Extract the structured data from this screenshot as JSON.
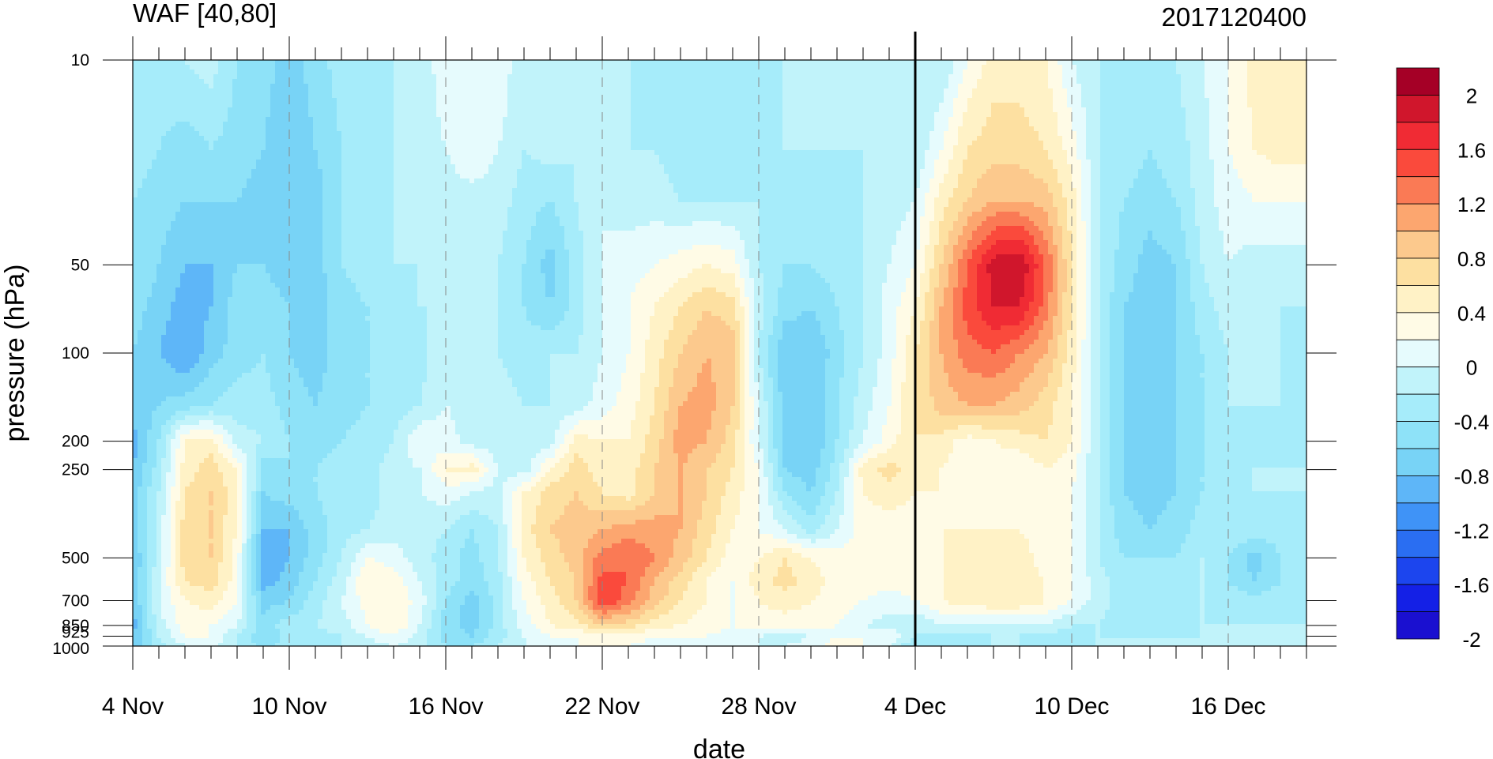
{
  "chart_data": {
    "type": "heatmap",
    "title_left": "WAF [40,80]",
    "title_right": "2017120400",
    "xlabel": "date",
    "ylabel": "pressure (hPa)",
    "x_tick_labels": [
      "4 Nov",
      "10 Nov",
      "16 Nov",
      "22 Nov",
      "28 Nov",
      "4 Dec",
      "10 Dec",
      "16 Dec"
    ],
    "x_range": [
      "4 Nov",
      "19 Dec"
    ],
    "y_tick_labels": [
      "10",
      "50",
      "100",
      "200",
      "250",
      "500",
      "700",
      "850",
      "925",
      "1000"
    ],
    "y_scale": "log",
    "y_range_hPa": [
      1000,
      10
    ],
    "marked_date": "4 Dec",
    "colorbar_labels": [
      "2",
      "1.6",
      "1.2",
      "0.8",
      "0.4",
      "0",
      "-0.4",
      "-0.8",
      "-1.2",
      "-1.6",
      "-2"
    ],
    "colorbar_colors": [
      "#a50026",
      "#d0162c",
      "#f02b34",
      "#fa4a3c",
      "#fa7a55",
      "#fca66f",
      "#fcc98d",
      "#fde0a1",
      "#fff2c6",
      "#fffbe6",
      "#e6fbfd",
      "#c1f3fa",
      "#a6ecfa",
      "#8ee2f8",
      "#78d3f6",
      "#5eb6f8",
      "#3f93f7",
      "#2a6ef2",
      "#1c45ee",
      "#1420e6",
      "#1a10d0"
    ],
    "grid": "dashed vertical lines at labeled dates",
    "legend_placement": "right",
    "field_by_day": {
      "days": [
        "4 Nov",
        "5 Nov",
        "6 Nov",
        "7 Nov",
        "8 Nov",
        "9 Nov",
        "10 Nov",
        "11 Nov",
        "12 Nov",
        "13 Nov",
        "14 Nov",
        "15 Nov",
        "16 Nov",
        "17 Nov",
        "18 Nov",
        "19 Nov",
        "20 Nov",
        "21 Nov",
        "22 Nov",
        "23 Nov",
        "24 Nov",
        "25 Nov",
        "26 Nov",
        "27 Nov",
        "28 Nov",
        "29 Nov",
        "30 Nov",
        "1 Dec",
        "2 Dec",
        "3 Dec",
        "4 Dec",
        "5 Dec",
        "6 Dec",
        "7 Dec",
        "8 Dec",
        "9 Dec",
        "10 Dec",
        "11 Dec",
        "12 Dec",
        "13 Dec",
        "14 Dec",
        "15 Dec",
        "16 Dec",
        "17 Dec",
        "18 Dec",
        "19 Dec"
      ],
      "levels_hPa": [
        10,
        20,
        30,
        50,
        70,
        100,
        150,
        200,
        250,
        300,
        400,
        500,
        600,
        700,
        850,
        925,
        1000
      ],
      "values_by_level": [
        [
          -0.5,
          -0.5,
          -0.4,
          -0.3,
          -0.6,
          -0.7,
          -0.9,
          -0.7,
          -0.5,
          -0.5,
          -0.4,
          -0.4,
          0,
          0,
          0,
          -0.4,
          -0.2,
          -0.3,
          -0.4,
          -0.4,
          -0.5,
          -0.5,
          -0.5,
          -0.5,
          -0.5,
          -0.4,
          -0.4,
          -0.4,
          -0.4,
          -0.4,
          -0.4,
          -0.4,
          0,
          0.3,
          0.3,
          0.2,
          -0.2,
          -0.4,
          -0.4,
          -0.4,
          -0.4,
          -0.2,
          0,
          0.3,
          0.3,
          0.3
        ],
        [
          -0.5,
          -0.6,
          -0.7,
          -0.6,
          -0.7,
          -0.8,
          -1.0,
          -0.8,
          -0.6,
          -0.5,
          -0.4,
          -0.4,
          -0.2,
          0,
          -0.2,
          -0.4,
          -0.3,
          -0.4,
          -0.3,
          -0.4,
          -0.4,
          -0.5,
          -0.5,
          -0.5,
          -0.4,
          -0.4,
          -0.4,
          -0.4,
          -0.4,
          -0.4,
          -0.4,
          0,
          0.4,
          0.5,
          0.5,
          0.4,
          0.1,
          -0.4,
          -0.5,
          -0.6,
          -0.5,
          -0.3,
          0,
          0.2,
          0.3,
          0.3
        ],
        [
          -0.6,
          -0.7,
          -0.8,
          -0.8,
          -0.8,
          -0.9,
          -1.0,
          -0.9,
          -0.6,
          -0.5,
          -0.4,
          -0.4,
          -0.3,
          -0.3,
          -0.3,
          -0.5,
          -0.6,
          -0.4,
          -0.2,
          -0.3,
          -0.3,
          -0.4,
          -0.4,
          -0.4,
          -0.4,
          -0.5,
          -0.5,
          -0.5,
          -0.4,
          -0.3,
          -0.2,
          0.3,
          0.6,
          0.8,
          0.8,
          0.7,
          0.3,
          -0.4,
          -0.6,
          -0.7,
          -0.6,
          -0.3,
          -0.1,
          0,
          0,
          0
        ],
        [
          -0.6,
          -0.8,
          -1.0,
          -1.0,
          -0.8,
          -0.8,
          -0.9,
          -0.9,
          -0.6,
          -0.5,
          -0.4,
          -0.4,
          -0.4,
          -0.4,
          -0.4,
          -0.6,
          -0.9,
          -0.5,
          -0.2,
          -0.1,
          0,
          0.1,
          0.2,
          0.1,
          -0.4,
          -0.6,
          -0.6,
          -0.5,
          -0.4,
          -0.2,
          0,
          0.6,
          1.2,
          1.7,
          1.8,
          1.2,
          0.4,
          -0.4,
          -0.7,
          -0.9,
          -0.8,
          -0.4,
          -0.2,
          -0.3,
          -0.3,
          -0.3
        ],
        [
          -0.7,
          -0.9,
          -1.1,
          -1.0,
          -0.7,
          -0.7,
          -0.8,
          -0.9,
          -0.7,
          -0.6,
          -0.5,
          -0.4,
          -0.4,
          -0.4,
          -0.4,
          -0.6,
          -0.8,
          -0.5,
          -0.2,
          0,
          0.2,
          0.4,
          0.6,
          0.5,
          -0.3,
          -0.7,
          -0.8,
          -0.6,
          -0.4,
          -0.1,
          0.2,
          0.8,
          1.3,
          1.6,
          1.6,
          1.1,
          0.4,
          -0.4,
          -0.8,
          -0.9,
          -0.8,
          -0.5,
          -0.3,
          -0.4,
          -0.4,
          -0.4
        ],
        [
          -0.8,
          -1.0,
          -1.2,
          -0.9,
          -0.7,
          -0.6,
          -0.8,
          -0.9,
          -0.7,
          -0.6,
          -0.5,
          -0.5,
          -0.2,
          -0.4,
          -0.4,
          -0.5,
          -0.4,
          -0.4,
          -0.2,
          0,
          0.3,
          0.6,
          0.8,
          0.7,
          -0.4,
          -1.0,
          -1.0,
          -0.7,
          -0.4,
          -0.1,
          0.4,
          0.8,
          1.1,
          1.2,
          1.0,
          0.8,
          0.3,
          -0.4,
          -0.8,
          -0.9,
          -0.8,
          -0.6,
          -0.4,
          -0.4,
          -0.4,
          -0.5
        ],
        [
          -0.9,
          -0.8,
          -0.7,
          -0.6,
          -0.5,
          -0.5,
          -0.7,
          -0.8,
          -0.7,
          -0.6,
          -0.5,
          -0.4,
          -0.2,
          -0.3,
          -0.3,
          -0.4,
          -0.4,
          -0.3,
          -0.1,
          0.1,
          0.4,
          0.8,
          0.9,
          0.6,
          -0.2,
          -0.9,
          -1.0,
          -0.6,
          -0.3,
          0,
          0.4,
          0.7,
          0.8,
          0.8,
          0.7,
          0.5,
          0.2,
          -0.4,
          -0.8,
          -0.9,
          -0.8,
          -0.6,
          -0.4,
          -0.4,
          -0.4,
          -0.4
        ],
        [
          -1.1,
          -0.6,
          0.2,
          0.3,
          -0.3,
          -0.4,
          -0.6,
          -0.7,
          -0.6,
          -0.5,
          -0.4,
          0,
          -0.1,
          -0.3,
          -0.3,
          -0.3,
          -0.3,
          0.3,
          0.2,
          0.2,
          0.5,
          0.9,
          0.8,
          0.5,
          -0.2,
          -0.9,
          -1.0,
          -0.6,
          -0.2,
          0.1,
          0.4,
          0.3,
          0.1,
          0.2,
          0.3,
          0.4,
          0.2,
          -0.4,
          -0.8,
          -0.9,
          -0.8,
          -0.6,
          -0.4,
          -0.5,
          -0.5,
          -0.5
        ],
        [
          -1.0,
          -0.5,
          0.3,
          0.5,
          0.2,
          -0.7,
          -0.6,
          -0.6,
          -0.5,
          -0.5,
          -0.3,
          -0.2,
          0.2,
          0.3,
          -0.2,
          -0.3,
          0.2,
          0.5,
          0.3,
          0.3,
          0.6,
          0.8,
          0.6,
          0.4,
          0,
          -0.8,
          -0.9,
          -0.5,
          0.3,
          0.5,
          0.3,
          0.2,
          0.1,
          0.1,
          0,
          0.2,
          0.1,
          -0.4,
          -0.8,
          -0.9,
          -0.8,
          -0.6,
          -0.5,
          -0.4,
          -0.4,
          -0.4
        ],
        [
          -0.9,
          -0.4,
          0.4,
          0.6,
          0.3,
          -0.8,
          -0.7,
          -0.6,
          -0.5,
          -0.5,
          -0.3,
          -0.2,
          -0.1,
          -0.2,
          -0.3,
          0.2,
          0.5,
          0.6,
          0.4,
          0.3,
          0.6,
          0.8,
          0.6,
          0.3,
          0,
          -0.6,
          -0.8,
          -0.4,
          0.2,
          0.3,
          0.2,
          0.2,
          0.1,
          0.1,
          0.1,
          0.1,
          0,
          -0.4,
          -0.8,
          -0.9,
          -0.8,
          -0.6,
          -0.5,
          -0.4,
          -0.4,
          -0.4
        ],
        [
          -0.9,
          -0.3,
          0.5,
          0.6,
          0.2,
          -1.0,
          -1.0,
          -0.7,
          -0.5,
          -0.4,
          -0.3,
          -0.3,
          -0.4,
          -0.6,
          -0.4,
          0.3,
          0.6,
          0.7,
          0.8,
          0.9,
          0.9,
          0.8,
          0.5,
          0.2,
          0,
          -0.2,
          -0.5,
          -0.2,
          0.1,
          0.1,
          0.1,
          0.2,
          0.2,
          0.2,
          0.2,
          0.1,
          0,
          -0.4,
          -0.7,
          -0.8,
          -0.7,
          -0.5,
          -0.4,
          -0.5,
          -0.5,
          -0.5
        ],
        [
          -1.0,
          -0.3,
          0.5,
          0.6,
          0.1,
          -1.2,
          -1.0,
          -0.7,
          -0.4,
          0,
          -0.1,
          -0.3,
          -0.5,
          -0.7,
          -0.4,
          0.2,
          0.5,
          0.7,
          1.1,
          1.2,
          1.0,
          0.7,
          0.4,
          0.1,
          0.2,
          0.4,
          0.2,
          0.1,
          0.1,
          0.1,
          0.1,
          0.2,
          0.3,
          0.4,
          0.3,
          0.1,
          0,
          -0.4,
          -0.6,
          -0.6,
          -0.6,
          -0.4,
          -0.6,
          -0.9,
          -0.6,
          -0.5
        ],
        [
          -1.0,
          -0.2,
          0.4,
          0.5,
          0.1,
          -1.1,
          -0.9,
          -0.6,
          -0.3,
          0.2,
          0.1,
          -0.2,
          -0.5,
          -0.7,
          -0.5,
          0.1,
          0.4,
          0.6,
          1.3,
          1.2,
          0.8,
          0.5,
          0.2,
          0,
          0.3,
          0.5,
          0.3,
          0.1,
          0.1,
          0.1,
          0.1,
          0.2,
          0.3,
          0.3,
          0.3,
          0.2,
          0,
          -0.3,
          -0.5,
          -0.5,
          -0.5,
          -0.4,
          -0.6,
          -0.8,
          -0.6,
          -0.5
        ],
        [
          -1.0,
          -0.2,
          0.2,
          0.3,
          0,
          -0.9,
          -0.8,
          -0.5,
          -0.2,
          0.1,
          0.2,
          -0.1,
          -0.6,
          -0.9,
          -0.5,
          0,
          0.3,
          0.6,
          1.4,
          1.1,
          0.7,
          0.4,
          0.2,
          0,
          0.2,
          0.3,
          0.2,
          0.1,
          0,
          -0.1,
          0,
          0.2,
          0.3,
          0.4,
          0.4,
          0.2,
          0,
          -0.3,
          -0.5,
          -0.5,
          -0.5,
          -0.4,
          -0.5,
          -0.5,
          -0.5,
          -0.5
        ],
        [
          -1.1,
          -0.3,
          0.1,
          0,
          -0.2,
          -0.7,
          -0.5,
          -0.4,
          -0.3,
          0,
          0.2,
          -0.2,
          -0.7,
          -0.9,
          -0.5,
          -0.1,
          0.2,
          0.3,
          0.6,
          0.5,
          0.3,
          0.2,
          0.1,
          0,
          0.1,
          0.1,
          0.1,
          0,
          -0.2,
          -0.3,
          -0.4,
          -0.2,
          -0.2,
          -0.3,
          -0.3,
          -0.2,
          -0.4,
          -0.4,
          -0.5,
          -0.5,
          -0.5,
          -0.4,
          -0.4,
          -0.4,
          -0.4,
          -0.4
        ],
        [
          -1.0,
          -0.4,
          0,
          0,
          -0.4,
          -0.8,
          -0.5,
          -0.5,
          -0.4,
          -0.2,
          0,
          -0.3,
          -0.7,
          -0.8,
          -0.5,
          -0.2,
          0,
          0,
          0.1,
          0.1,
          0,
          0,
          0,
          -0.1,
          -0.2,
          -0.3,
          -0.2,
          0,
          0,
          0,
          -0.4,
          -0.5,
          -0.5,
          -0.4,
          -0.4,
          -0.5,
          -0.5,
          -0.4,
          -0.4,
          -0.4,
          -0.4,
          -0.4,
          -0.4,
          -0.4,
          -0.4,
          -0.4
        ],
        [
          -1.0,
          -0.5,
          -0.2,
          -0.1,
          -0.4,
          -0.7,
          -0.5,
          -0.4,
          -0.4,
          -0.3,
          -0.2,
          -0.3,
          -0.6,
          -0.6,
          -0.4,
          -0.2,
          -0.1,
          0,
          0,
          0,
          -0.1,
          -0.2,
          -0.1,
          -0.2,
          -0.2,
          -0.2,
          -0.1,
          0.1,
          0,
          -0.2,
          -0.6,
          -0.5,
          -0.4,
          -0.4,
          -0.4,
          -0.4,
          -0.4,
          -0.4,
          -0.4,
          -0.4,
          -0.4,
          -0.4,
          -0.4,
          -0.4,
          -0.4,
          -0.4
        ]
      ]
    }
  }
}
